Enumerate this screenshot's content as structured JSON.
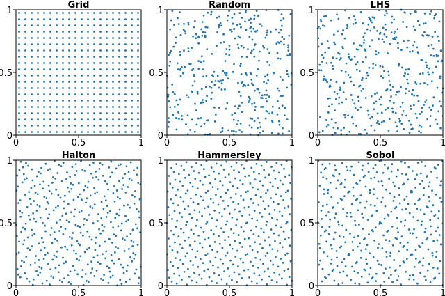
{
  "chart_data": [
    {
      "type": "scatter",
      "title": "Grid",
      "n": 400,
      "sequence": "grid",
      "grid_values": [
        0.025,
        0.075,
        0.125,
        0.175,
        0.225,
        0.275,
        0.325,
        0.375,
        0.425,
        0.475,
        0.525,
        0.575,
        0.625,
        0.675,
        0.725,
        0.775,
        0.825,
        0.875,
        0.925,
        0.975
      ],
      "xlim": [
        0,
        1
      ],
      "ylim": [
        0,
        1
      ],
      "xticks": [
        "0",
        "0.5",
        "1"
      ],
      "yticks": [
        "0",
        "0.5",
        "1"
      ],
      "color": "#1f77b4"
    },
    {
      "type": "scatter",
      "title": "Random",
      "n": 400,
      "sequence": "uniform-random",
      "xlim": [
        0,
        1
      ],
      "ylim": [
        0,
        1
      ],
      "xticks": [
        "0",
        "0.5",
        "1"
      ],
      "yticks": [
        "0",
        "0.5",
        "1"
      ],
      "color": "#1f77b4"
    },
    {
      "type": "scatter",
      "title": "LHS",
      "n": 400,
      "sequence": "latin-hypercube",
      "xlim": [
        0,
        1
      ],
      "ylim": [
        0,
        1
      ],
      "xticks": [
        "0",
        "0.5",
        "1"
      ],
      "yticks": [
        "0",
        "0.5",
        "1"
      ],
      "color": "#1f77b4"
    },
    {
      "type": "scatter",
      "title": "Halton",
      "n": 400,
      "sequence": "halton",
      "bases": [
        2,
        3
      ],
      "xlim": [
        0,
        1
      ],
      "ylim": [
        0,
        1
      ],
      "xticks": [
        "0",
        "0.5",
        "1"
      ],
      "yticks": [
        "0",
        "0.5",
        "1"
      ],
      "color": "#1f77b4"
    },
    {
      "type": "scatter",
      "title": "Hammersley",
      "n": 400,
      "sequence": "hammersley",
      "bases": [
        2
      ],
      "xlim": [
        0,
        1
      ],
      "ylim": [
        0,
        1
      ],
      "xticks": [
        "0",
        "0.5",
        "1"
      ],
      "yticks": [
        "0",
        "0.5",
        "1"
      ],
      "color": "#1f77b4"
    },
    {
      "type": "scatter",
      "title": "Sobol",
      "n": 400,
      "sequence": "sobol",
      "xlim": [
        0,
        1
      ],
      "ylim": [
        0,
        1
      ],
      "xticks": [
        "0",
        "0.5",
        "1"
      ],
      "yticks": [
        "0",
        "0.5",
        "1"
      ],
      "color": "#1f77b4"
    }
  ]
}
